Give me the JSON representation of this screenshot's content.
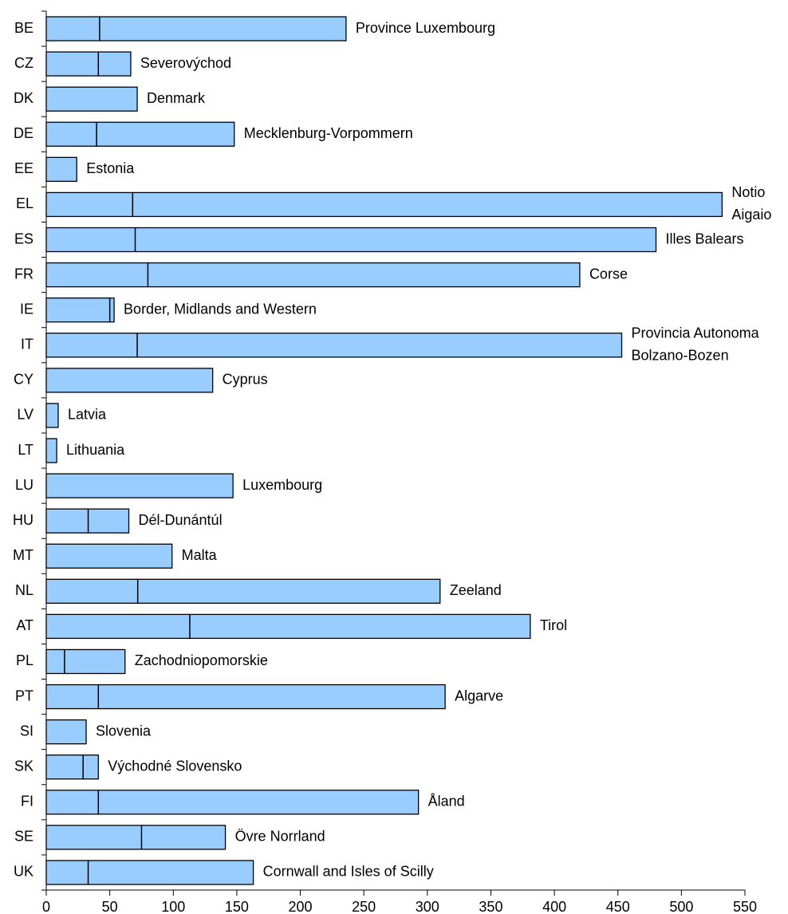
{
  "chart_data": {
    "type": "bar",
    "categories": [
      "BE",
      "CZ",
      "DK",
      "DE",
      "EE",
      "EL",
      "ES",
      "FR",
      "IE",
      "IT",
      "CY",
      "LV",
      "LT",
      "LU",
      "HU",
      "MT",
      "NL",
      "AT",
      "PL",
      "PT",
      "SI",
      "SK",
      "FI",
      "SE",
      "UK"
    ],
    "values": [
      236,
      66.5,
      71.6,
      148,
      24,
      532,
      480,
      420,
      53.4,
      453,
      131,
      9.4,
      8.2,
      147,
      65,
      99,
      310,
      381,
      62,
      314,
      31.4,
      41,
      293,
      141,
      163
    ],
    "markers": [
      42,
      41,
      null,
      39.6,
      null,
      68,
      70,
      80,
      50,
      71.6,
      null,
      null,
      null,
      null,
      33,
      null,
      72,
      113,
      14.4,
      41,
      null,
      29,
      41,
      75,
      33
    ],
    "labels": [
      [
        "Province Luxembourg"
      ],
      [
        "Severovýchod"
      ],
      [
        "Denmark"
      ],
      [
        "Mecklenburg-Vorpommern"
      ],
      [
        "Estonia"
      ],
      [
        "Notio",
        "Aigaio"
      ],
      [
        "Illes Balears"
      ],
      [
        "Corse"
      ],
      [
        "Border, Midlands and Western"
      ],
      [
        "Provincia Autonoma",
        "Bolzano-Bozen"
      ],
      [
        "Cyprus"
      ],
      [
        "Latvia"
      ],
      [
        "Lithuania"
      ],
      [
        "Luxembourg"
      ],
      [
        "Dél-Dunántúl"
      ],
      [
        "Malta"
      ],
      [
        "Zeeland"
      ],
      [
        "Tirol"
      ],
      [
        "Zachodniopomorskie"
      ],
      [
        "Algarve"
      ],
      [
        "Slovenia"
      ],
      [
        "Východné Slovensko"
      ],
      [
        "Åland"
      ],
      [
        "Övre Norrland"
      ],
      [
        "Cornwall and Isles of Scilly"
      ]
    ],
    "color": "#99ccff",
    "xlim": [
      0,
      550
    ],
    "xticks": [
      0,
      50,
      100,
      150,
      200,
      250,
      300,
      350,
      400,
      450,
      500,
      550
    ]
  }
}
